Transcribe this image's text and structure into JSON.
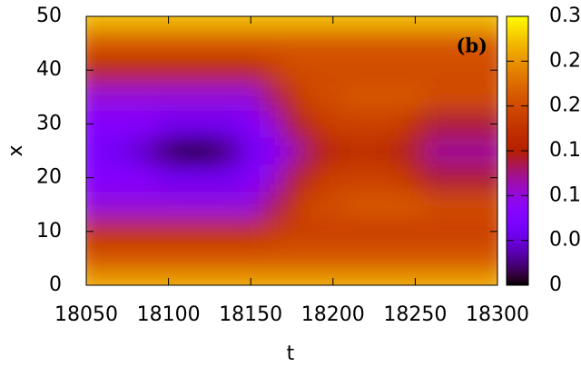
{
  "chart_data": {
    "type": "heatmap",
    "annotation": "(b)",
    "xlabel": "t",
    "ylabel": "x",
    "x": [
      18050,
      18062.5,
      18075,
      18087.5,
      18100,
      18112.5,
      18125,
      18137.5,
      18150,
      18162.5,
      18175,
      18187.5,
      18200,
      18212.5,
      18225,
      18237.5,
      18250,
      18262.5,
      18275,
      18287.5,
      18300
    ],
    "y": [
      0,
      5,
      10,
      15,
      20,
      25,
      30,
      35,
      40,
      45,
      50
    ],
    "z": [
      [
        0.26,
        0.26,
        0.26,
        0.26,
        0.26,
        0.26,
        0.26,
        0.26,
        0.26,
        0.26,
        0.26,
        0.26,
        0.26,
        0.26,
        0.26,
        0.26,
        0.26,
        0.26,
        0.26,
        0.26,
        0.26
      ],
      [
        0.21,
        0.21,
        0.21,
        0.21,
        0.21,
        0.21,
        0.21,
        0.21,
        0.21,
        0.21,
        0.21,
        0.21,
        0.21,
        0.21,
        0.21,
        0.21,
        0.21,
        0.21,
        0.21,
        0.21,
        0.21
      ],
      [
        0.17,
        0.17,
        0.17,
        0.17,
        0.17,
        0.17,
        0.17,
        0.17,
        0.17,
        0.18,
        0.19,
        0.19,
        0.19,
        0.19,
        0.19,
        0.19,
        0.19,
        0.19,
        0.19,
        0.19,
        0.19
      ],
      [
        0.1,
        0.1,
        0.1,
        0.1,
        0.1,
        0.1,
        0.1,
        0.1,
        0.1,
        0.13,
        0.17,
        0.2,
        0.2,
        0.21,
        0.21,
        0.21,
        0.21,
        0.2,
        0.2,
        0.2,
        0.2
      ],
      [
        0.08,
        0.08,
        0.08,
        0.08,
        0.06,
        0.06,
        0.06,
        0.06,
        0.08,
        0.1,
        0.14,
        0.17,
        0.19,
        0.19,
        0.19,
        0.19,
        0.17,
        0.14,
        0.14,
        0.14,
        0.14
      ],
      [
        0.07,
        0.065,
        0.055,
        0.04,
        0.02,
        0.005,
        0.01,
        0.03,
        0.06,
        0.08,
        0.11,
        0.14,
        0.16,
        0.17,
        0.17,
        0.16,
        0.14,
        0.12,
        0.12,
        0.12,
        0.12
      ],
      [
        0.08,
        0.08,
        0.08,
        0.08,
        0.06,
        0.06,
        0.06,
        0.06,
        0.08,
        0.1,
        0.14,
        0.17,
        0.19,
        0.19,
        0.19,
        0.19,
        0.17,
        0.14,
        0.14,
        0.14,
        0.14
      ],
      [
        0.1,
        0.1,
        0.1,
        0.1,
        0.1,
        0.1,
        0.1,
        0.1,
        0.1,
        0.13,
        0.17,
        0.2,
        0.2,
        0.21,
        0.21,
        0.21,
        0.21,
        0.2,
        0.2,
        0.2,
        0.2
      ],
      [
        0.16,
        0.16,
        0.16,
        0.16,
        0.16,
        0.16,
        0.16,
        0.16,
        0.16,
        0.18,
        0.2,
        0.2,
        0.2,
        0.2,
        0.2,
        0.2,
        0.2,
        0.2,
        0.2,
        0.2,
        0.2
      ],
      [
        0.21,
        0.21,
        0.21,
        0.21,
        0.21,
        0.21,
        0.21,
        0.21,
        0.21,
        0.21,
        0.21,
        0.21,
        0.21,
        0.21,
        0.21,
        0.21,
        0.21,
        0.21,
        0.21,
        0.21,
        0.21
      ],
      [
        0.27,
        0.27,
        0.27,
        0.27,
        0.27,
        0.27,
        0.27,
        0.27,
        0.27,
        0.27,
        0.27,
        0.27,
        0.27,
        0.27,
        0.27,
        0.27,
        0.27,
        0.27,
        0.27,
        0.27,
        0.27
      ]
    ],
    "xlim": [
      18050,
      18300
    ],
    "ylim": [
      0,
      50
    ],
    "clim": [
      0,
      0.3
    ],
    "xticks": [
      18050,
      18100,
      18150,
      18200,
      18250,
      18300
    ],
    "yticks": [
      0,
      10,
      20,
      30,
      40,
      50
    ],
    "cticks": [
      0,
      0.05,
      0.1,
      0.15,
      0.2,
      0.25,
      0.3
    ]
  }
}
